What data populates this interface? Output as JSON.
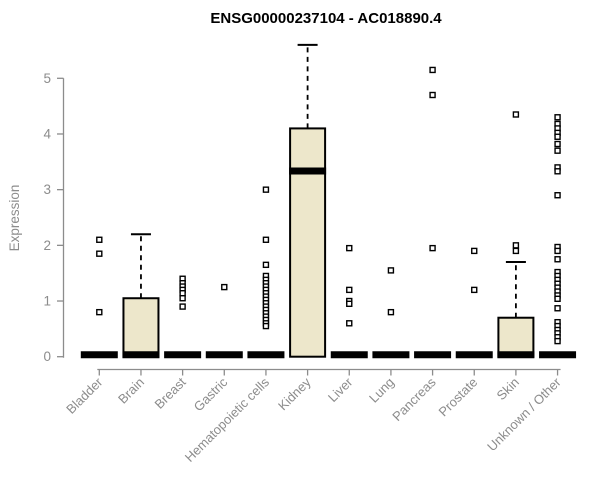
{
  "chart_data": {
    "type": "boxplot",
    "title": "ENSG00000237104 - AC018890.4",
    "ylabel": "Expression",
    "xlabel": "",
    "ylim": [
      0,
      5
    ],
    "yticks": [
      0,
      1,
      2,
      3,
      4,
      5
    ],
    "grid": false,
    "legend": "none",
    "colors": {
      "box_fill": "#EDE7CB",
      "box_stroke": "#000000",
      "median": "#000000",
      "axis": "#8C8C8C",
      "title": "#000000"
    },
    "categories": [
      "Bladder",
      "Brain",
      "Breast",
      "Gastric",
      "Hematopoietic cells",
      "Kidney",
      "Liver",
      "Lung",
      "Pancreas",
      "Prostate",
      "Skin",
      "Unknown / Other"
    ],
    "series": [
      {
        "category": "Bladder",
        "whisker_low": 0,
        "q1": 0,
        "median": 0,
        "q3": 0,
        "whisker_high": 0,
        "outliers": [
          2.1,
          1.85,
          0.8
        ]
      },
      {
        "category": "Brain",
        "whisker_low": 0,
        "q1": 0,
        "median": 0,
        "q3": 1.05,
        "whisker_high": 2.2,
        "outliers": []
      },
      {
        "category": "Breast",
        "whisker_low": 0,
        "q1": 0,
        "median": 0,
        "q3": 0,
        "whisker_high": 0,
        "outliers": [
          1.4,
          1.32,
          1.26,
          1.2,
          1.14,
          1.05,
          0.9
        ]
      },
      {
        "category": "Gastric",
        "whisker_low": 0,
        "q1": 0,
        "median": 0,
        "q3": 0,
        "whisker_high": 0,
        "outliers": [
          1.25
        ]
      },
      {
        "category": "Hematopoietic cells",
        "whisker_low": 0,
        "q1": 0,
        "median": 0,
        "q3": 0,
        "whisker_high": 0,
        "outliers": [
          3.0,
          2.1,
          1.65,
          1.45,
          1.38,
          1.32,
          1.26,
          1.2,
          1.14,
          1.08,
          1.02,
          0.96,
          0.9,
          0.84,
          0.78,
          0.72,
          0.66,
          0.6,
          0.55
        ]
      },
      {
        "category": "Kidney",
        "whisker_low": 0,
        "q1": 0,
        "median": 3.3,
        "q3": 4.1,
        "whisker_high": 5.6,
        "outliers": []
      },
      {
        "category": "Liver",
        "whisker_low": 0,
        "q1": 0,
        "median": 0,
        "q3": 0,
        "whisker_high": 0,
        "outliers": [
          1.95,
          1.2,
          1.0,
          0.95,
          0.6
        ]
      },
      {
        "category": "Lung",
        "whisker_low": 0,
        "q1": 0,
        "median": 0,
        "q3": 0,
        "whisker_high": 0,
        "outliers": [
          1.55,
          0.8
        ]
      },
      {
        "category": "Pancreas",
        "whisker_low": 0,
        "q1": 0,
        "median": 0,
        "q3": 0,
        "whisker_high": 0,
        "outliers": [
          5.15,
          4.7,
          1.95
        ]
      },
      {
        "category": "Prostate",
        "whisker_low": 0,
        "q1": 0,
        "median": 0,
        "q3": 0,
        "whisker_high": 0,
        "outliers": [
          1.9,
          1.2
        ]
      },
      {
        "category": "Skin",
        "whisker_low": 0,
        "q1": 0,
        "median": 0,
        "q3": 0.7,
        "whisker_high": 1.7,
        "outliers": [
          4.35,
          2.0,
          1.9
        ]
      },
      {
        "category": "Unknown / Other",
        "whisker_low": 0,
        "q1": 0,
        "median": 0,
        "q3": 0,
        "whisker_high": 0,
        "outliers": [
          4.3,
          4.18,
          4.1,
          4.02,
          3.95,
          3.82,
          3.7,
          3.4,
          3.33,
          2.9,
          1.97,
          1.9,
          1.75,
          1.52,
          1.45,
          1.38,
          1.31,
          1.24,
          1.17,
          1.1,
          1.04,
          0.87,
          0.62,
          0.55,
          0.48,
          0.42,
          0.35,
          0.28
        ]
      }
    ]
  }
}
